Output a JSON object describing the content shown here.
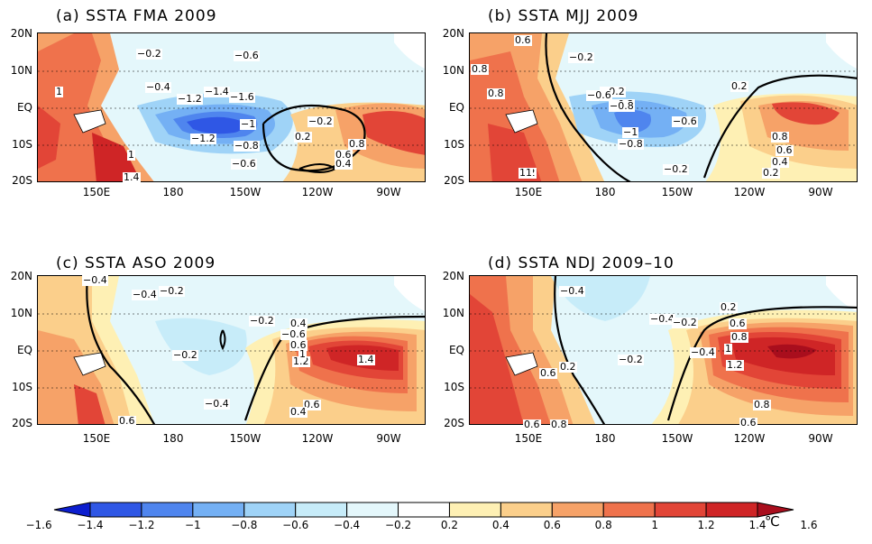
{
  "panels": [
    {
      "title": "(a)  SSTA  FMA  2009"
    },
    {
      "title": "(b)  SSTA  MJJ  2009"
    },
    {
      "title": "(c)  SSTA  ASO  2009"
    },
    {
      "title": "(d)  SSTA  NDJ  2009–10"
    }
  ],
  "axes": {
    "lat_ticks": [
      "20N",
      "10N",
      "EQ",
      "10S",
      "20S"
    ],
    "lon_ticks": [
      "150E",
      "180",
      "150W",
      "120W",
      "90W"
    ]
  },
  "colorbar": {
    "ticks": [
      "−1.6",
      "−1.4",
      "−1.2",
      "−1",
      "−0.8",
      "−0.6",
      "−0.4",
      "−0.2",
      "0.2",
      "0.4",
      "0.6",
      "0.8",
      "1",
      "1.2",
      "1.4",
      "1.6"
    ],
    "unit": "℃",
    "colors": [
      "#0c1ecf",
      "#2f57e5",
      "#4f85ee",
      "#74b0f4",
      "#9fd3f7",
      "#c7ecf9",
      "#e4f7fb",
      "#ffffff",
      "#fef0b4",
      "#fbcf8b",
      "#f6a268",
      "#ef724c",
      "#e24537",
      "#cf2526",
      "#a90e1d"
    ]
  },
  "contour_labels": {
    "a": [
      "-0.4",
      "-0.2",
      "-0.6",
      "-0.4",
      "-1.2",
      "-1.4",
      "-1.6",
      "-1",
      "-1.2",
      "-0.8",
      "-0.6",
      "-0.2",
      "0.2",
      "0.6",
      "0.4",
      "0.8",
      "1",
      "1",
      "1.4"
    ],
    "b": [
      "0.6",
      "-0.2",
      "0.8",
      "0.8",
      "-0.2",
      "-0.6",
      "-0.2",
      "-0.8",
      "-1",
      "-0.8",
      "-0.6",
      "0.2",
      "0.8",
      "0.6",
      "0.4",
      "0.2",
      "1.2",
      "1",
      "-0.2"
    ],
    "c": [
      "-0.4",
      "-0.2",
      "-0.4",
      "-0.2",
      "-0.2",
      "-0.4",
      "0.4",
      "-0.6",
      "0.6",
      "1.2",
      "1.4",
      "0.6",
      "0.4",
      "1",
      "0.6"
    ],
    "d": [
      "-0.4",
      "-0.4",
      "-0.2",
      "0.2",
      "0.6",
      "0.8",
      "1",
      "-0.4",
      "1.2",
      "0.6",
      "0.2",
      "-0.2",
      "0.8",
      "0.6",
      "0.8",
      "0.6"
    ]
  }
}
